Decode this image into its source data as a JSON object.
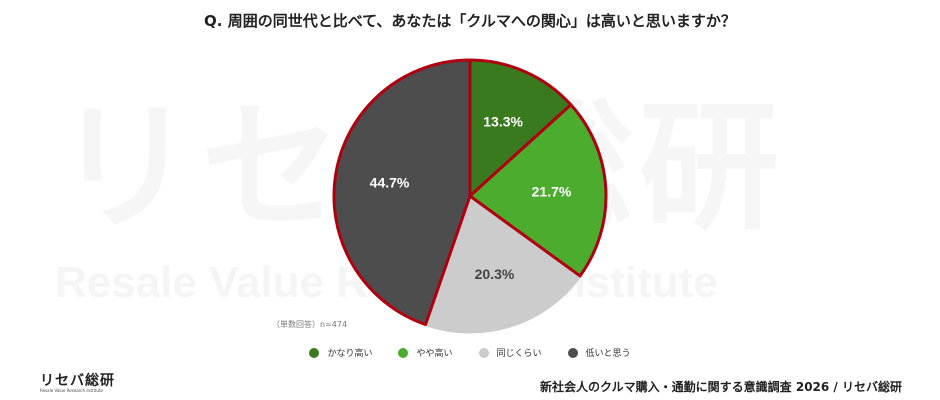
{
  "title": "Q. 周囲の同世代と比べて、あなたは「クルマへの関心」は高いと思いますか？",
  "watermark": {
    "main": "リセバ総研",
    "sub": "Resale Value Research Institute"
  },
  "note": "（単数回答）n=474",
  "logo": {
    "main": "リセバ総研",
    "sub": "Resale Value Research Institute"
  },
  "source": "新社会人のクルマ購入・通勤に関する意識調査 2026 / リセバ総研",
  "legend": [
    {
      "label": "かなり高い",
      "color": "#3a7a1e"
    },
    {
      "label": "やや高い",
      "color": "#4cac2e"
    },
    {
      "label": "同じくらい",
      "color": "#cccccc"
    },
    {
      "label": "低いと思う",
      "color": "#4d4d4d"
    }
  ],
  "chart_data": {
    "type": "pie",
    "title": "Q. 周囲の同世代と比べて、あなたは「クルマへの関心」は高いと思いますか？",
    "categories": [
      "かなり高い",
      "やや高い",
      "同じくらい",
      "低いと思う"
    ],
    "values": [
      13.3,
      21.7,
      20.3,
      44.7
    ],
    "labels": [
      "13.3%",
      "21.7%",
      "20.3%",
      "44.7%"
    ],
    "colors": [
      "#3a7a1e",
      "#4cac2e",
      "#cccccc",
      "#4d4d4d"
    ],
    "highlight_outline": "#b00010",
    "n": 474,
    "legend_position": "bottom"
  }
}
